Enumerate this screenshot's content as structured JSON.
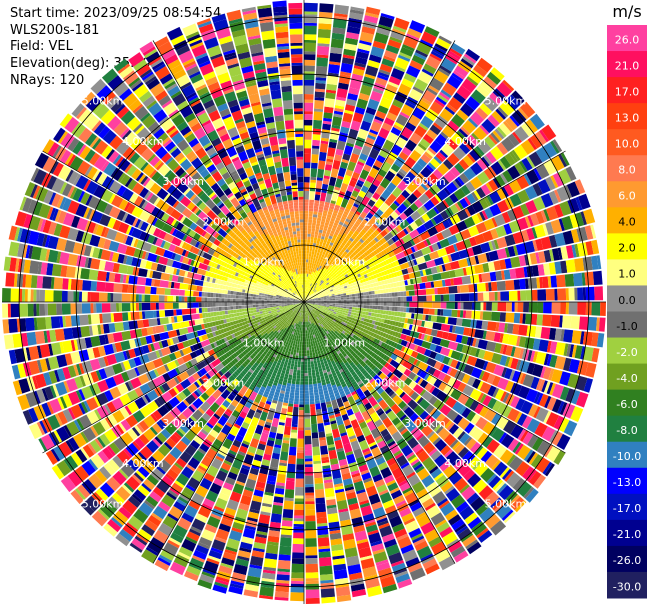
{
  "header": {
    "start_time": "Start time: 2023/09/25 08:54:54",
    "instrument": "WLS200s-181",
    "field": "Field: VEL",
    "elevation": "Elevation(deg): 35.30",
    "nrays": "NRays: 120"
  },
  "colorbar": {
    "unit": "m/s",
    "ticks": [
      "26.0",
      "21.0",
      "17.0",
      "13.0",
      "10.0",
      "8.0",
      "6.0",
      "4.0",
      "2.0",
      "1.0",
      "0.0",
      "-1.0",
      "-2.0",
      "-4.0",
      "-6.0",
      "-8.0",
      "-10.0",
      "-13.0",
      "-17.0",
      "-21.0",
      "-26.0",
      "-30.0"
    ],
    "colors": [
      "#ff40a0",
      "#ff1060",
      "#ff2020",
      "#ff4010",
      "#ff5a20",
      "#ff7a50",
      "#ff9a30",
      "#ffb000",
      "#ffff00",
      "#ffff80",
      "#909090",
      "#707070",
      "#a0d040",
      "#70a020",
      "#308020",
      "#208040",
      "#3080c0",
      "#0000ff",
      "#0010c0",
      "#000090",
      "#000060",
      "#202060"
    ]
  },
  "ppi": {
    "range_labels": [
      "1.00km",
      "2.00km",
      "3.00km",
      "4.00km",
      "5.00km"
    ],
    "ring_radii_km": [
      1,
      2,
      3,
      4,
      5
    ],
    "max_range_km": 5.3,
    "nrays": 120,
    "clean_range_km": 1.8
  }
}
